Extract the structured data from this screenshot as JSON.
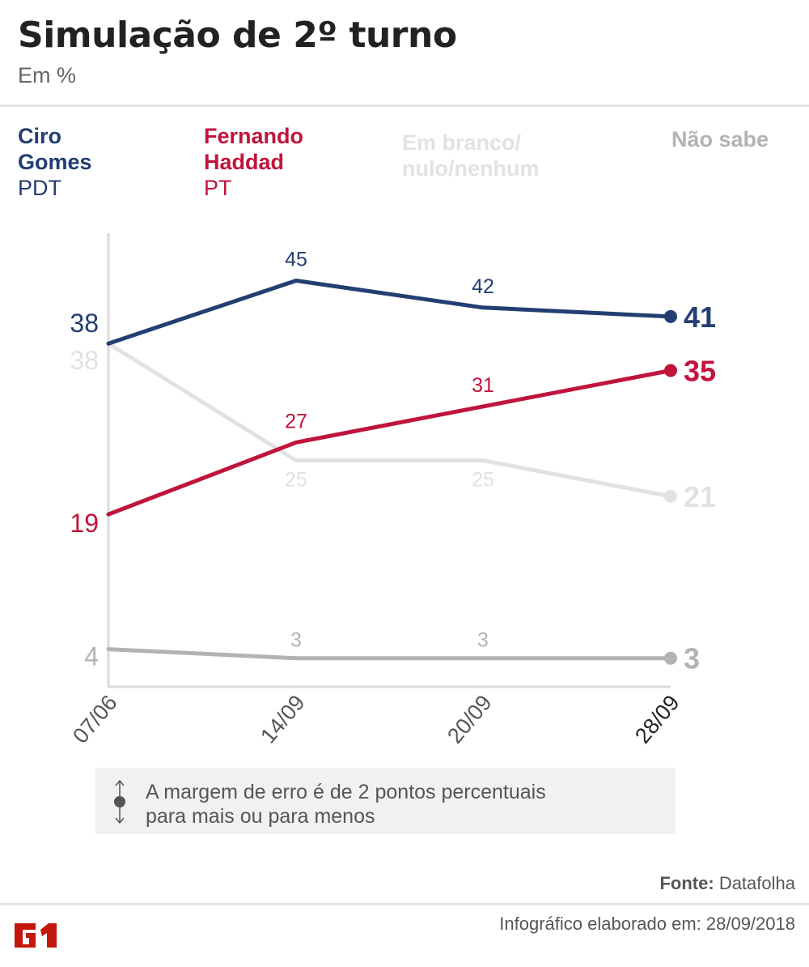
{
  "header": {
    "title": "Simulação de 2º turno",
    "subtitle": "Em %"
  },
  "legend": [
    {
      "name_line1": "Ciro",
      "name_line2": "Gomes",
      "party": "PDT",
      "color": "#233e72"
    },
    {
      "name_line1": "Fernando",
      "name_line2": "Haddad",
      "party": "PT",
      "color": "#c0143c"
    },
    {
      "name_line1": "Em branco/",
      "name_line2": "nulo/nenhum",
      "party": "",
      "color": "#e2e2e2"
    },
    {
      "name_line1": "Não sabe",
      "name_line2": "",
      "party": "",
      "color": "#b3b3b3"
    }
  ],
  "chart_data": {
    "type": "line",
    "title": "Simulação de 2º turno",
    "subtitle": "Em %",
    "xlabel": "",
    "ylabel": "%",
    "x": [
      "07/06",
      "14/09",
      "20/09",
      "28/09"
    ],
    "ylim": [
      0,
      50
    ],
    "grid": false,
    "legend_position": "top",
    "series": [
      {
        "name": "Ciro Gomes (PDT)",
        "color": "#233e72",
        "values": [
          38,
          45,
          42,
          41
        ]
      },
      {
        "name": "Fernando Haddad (PT)",
        "color": "#c0143c",
        "values": [
          19,
          27,
          31,
          35
        ]
      },
      {
        "name": "Em branco/nulo/nenhum",
        "color": "#e2e2e2",
        "values": [
          38,
          25,
          25,
          21
        ]
      },
      {
        "name": "Não sabe",
        "color": "#b3b3b3",
        "values": [
          4,
          3,
          3,
          3
        ]
      }
    ]
  },
  "note": {
    "line1": "A margem de erro é de 2 pontos percentuais",
    "line2": "para mais ou para menos"
  },
  "footer": {
    "source_label": "Fonte:",
    "source_value": "Datafolha",
    "credit": "Infográfico elaborado em: 28/09/2018",
    "logo_text": "G1",
    "logo_color": "#c4170c"
  }
}
